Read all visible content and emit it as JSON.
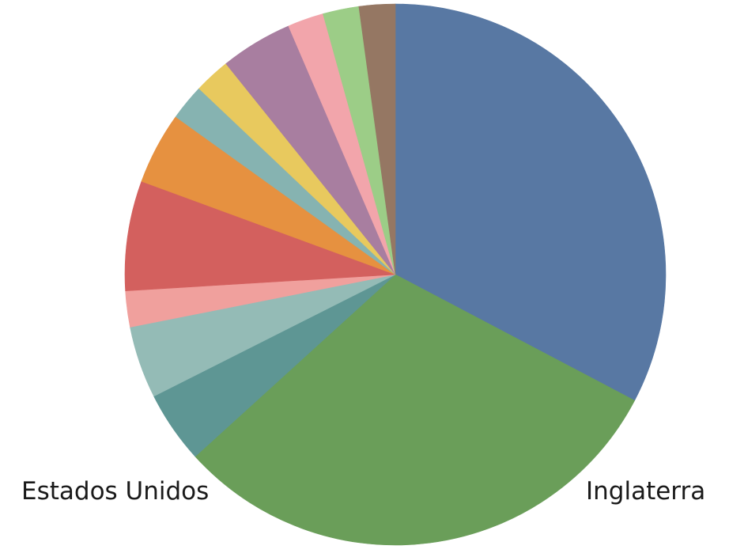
{
  "chart_data": {
    "type": "pie",
    "title": "",
    "start_angle_deg": 0,
    "direction": "clockwise",
    "slices": [
      {
        "label": "Inglaterra",
        "value": 34.9,
        "color": "#5878a3"
      },
      {
        "label": "Estados Unidos",
        "value": 32.6,
        "color": "#6a9e59"
      },
      {
        "label": "",
        "value": 4.6,
        "color": "#5e9694"
      },
      {
        "label": "",
        "value": 4.6,
        "color": "#94bbb6"
      },
      {
        "label": "",
        "value": 2.3,
        "color": "#f0a09d"
      },
      {
        "label": "",
        "value": 7.0,
        "color": "#d3605e"
      },
      {
        "label": "",
        "value": 4.6,
        "color": "#e69140"
      },
      {
        "label": "",
        "value": 2.3,
        "color": "#86b3b1"
      },
      {
        "label": "",
        "value": 2.3,
        "color": "#e8c95e"
      },
      {
        "label": "",
        "value": 4.6,
        "color": "#a87ea0"
      },
      {
        "label": "",
        "value": 2.3,
        "color": "#f2a5ab"
      },
      {
        "label": "",
        "value": 2.3,
        "color": "#9ccd87"
      },
      {
        "label": "",
        "value": 2.3,
        "color": "#957763"
      }
    ]
  }
}
